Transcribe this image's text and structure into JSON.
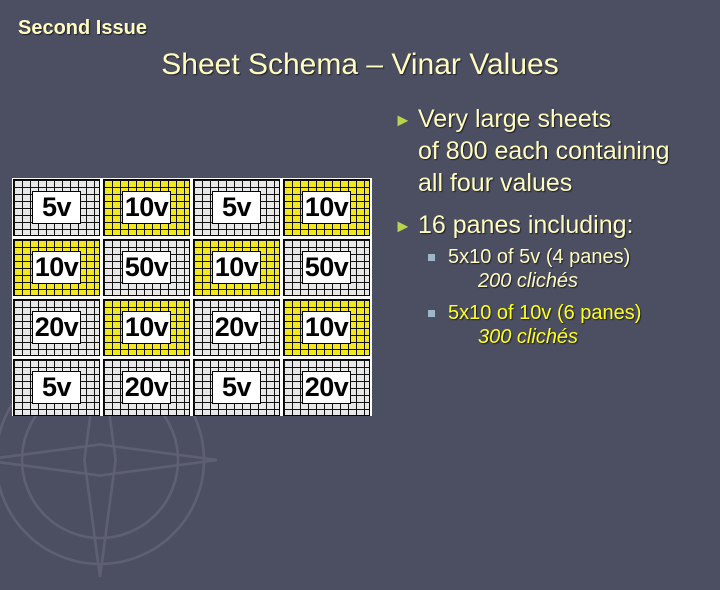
{
  "issue_label": "Second Issue",
  "title": "Sheet Schema – Vinar Values",
  "sheet": {
    "rows": [
      [
        {
          "value": "5v",
          "color": "white"
        },
        {
          "value": "10v",
          "color": "yellow"
        },
        {
          "value": "5v",
          "color": "white"
        },
        {
          "value": "10v",
          "color": "yellow"
        }
      ],
      [
        {
          "value": "10v",
          "color": "yellow"
        },
        {
          "value": "50v",
          "color": "white"
        },
        {
          "value": "10v",
          "color": "yellow"
        },
        {
          "value": "50v",
          "color": "white"
        }
      ],
      [
        {
          "value": "20v",
          "color": "white"
        },
        {
          "value": "10v",
          "color": "yellow"
        },
        {
          "value": "20v",
          "color": "white"
        },
        {
          "value": "10v",
          "color": "yellow"
        }
      ],
      [
        {
          "value": "5v",
          "color": "white"
        },
        {
          "value": "20v",
          "color": "white"
        },
        {
          "value": "5v",
          "color": "white"
        },
        {
          "value": "20v",
          "color": "white"
        }
      ]
    ]
  },
  "bullets": {
    "first": {
      "line1": "Very large sheets",
      "line2": "of 800 each containing",
      "line3": "all four values"
    },
    "second": "16 panes including:",
    "sub1": {
      "text": "5x10 of 5v (4 panes)",
      "note": "200 clichés"
    },
    "sub2": {
      "text": "5x10 of 10v (6 panes)",
      "note": "300 clichés"
    }
  },
  "colors": {
    "background": "#4c4e62",
    "title_text": "#fffcc0",
    "highlight_text": "#ffff20",
    "bullet_arrow": "#b8d44a",
    "pane_yellow": "#f2e81e"
  }
}
